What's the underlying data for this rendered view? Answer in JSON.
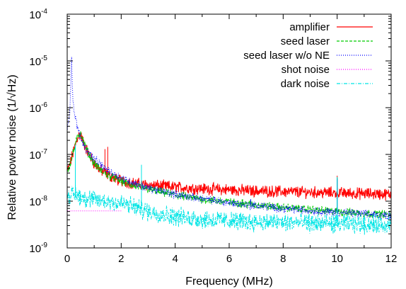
{
  "chart_data": {
    "type": "line",
    "title": "",
    "xlabel": "Frequency (MHz)",
    "ylabel": "Relative power noise (1/√Hz)",
    "x_scale": "linear",
    "y_scale": "log",
    "xlim": [
      0,
      12
    ],
    "ylim": [
      1e-09,
      0.0001
    ],
    "x_ticks": [
      "0",
      "2",
      "4",
      "6",
      "8",
      "10",
      "12"
    ],
    "x_tick_values": [
      0,
      2,
      4,
      6,
      8,
      10,
      12
    ],
    "y_ticks": [
      {
        "base": "10",
        "exp": "-9",
        "value": 1e-09
      },
      {
        "base": "10",
        "exp": "-8",
        "value": 1e-08
      },
      {
        "base": "10",
        "exp": "-7",
        "value": 1e-07
      },
      {
        "base": "10",
        "exp": "-6",
        "value": 1e-06
      },
      {
        "base": "10",
        "exp": "-5",
        "value": 1e-05
      },
      {
        "base": "10",
        "exp": "-4",
        "value": 0.0001
      }
    ],
    "grid": false,
    "legend_position": "top-right",
    "series": [
      {
        "name": "amplifier",
        "color": "#ff0000",
        "dash": "solid",
        "points": [
          [
            0.02,
            4.5e-08
          ],
          [
            0.1,
            6e-08
          ],
          [
            0.2,
            1e-07
          ],
          [
            0.3,
            1.6e-07
          ],
          [
            0.4,
            2.5e-07
          ],
          [
            0.5,
            2.6e-07
          ],
          [
            0.6,
            1.8e-07
          ],
          [
            0.8,
            1e-07
          ],
          [
            1.0,
            6.5e-08
          ],
          [
            1.2,
            4.8e-08
          ],
          [
            1.4,
            4e-08
          ],
          [
            1.6,
            3.4e-08
          ],
          [
            1.8,
            3e-08
          ],
          [
            2.0,
            2.7e-08
          ],
          [
            2.5,
            2.4e-08
          ],
          [
            3,
            2.2e-08
          ],
          [
            4,
            2e-08
          ],
          [
            5,
            1.85e-08
          ],
          [
            6,
            1.75e-08
          ],
          [
            7,
            1.65e-08
          ],
          [
            8,
            1.6e-08
          ],
          [
            9,
            1.55e-08
          ],
          [
            10,
            1.5e-08
          ],
          [
            11,
            1.45e-08
          ],
          [
            12,
            1.4e-08
          ]
        ],
        "spikes": [
          [
            1.4,
            1.3e-07
          ],
          [
            1.5,
            1.45e-07
          ],
          [
            2.75,
            5.5e-08
          ],
          [
            10.0,
            3.5e-08
          ]
        ]
      },
      {
        "name": "seed laser",
        "color": "#00cc00",
        "dash": "dashed",
        "points": [
          [
            0.02,
            4.5e-08
          ],
          [
            0.1,
            6e-08
          ],
          [
            0.2,
            1e-07
          ],
          [
            0.3,
            1.6e-07
          ],
          [
            0.4,
            2.6e-07
          ],
          [
            0.5,
            2.9e-07
          ],
          [
            0.6,
            1.9e-07
          ],
          [
            0.8,
            1e-07
          ],
          [
            1.0,
            6.5e-08
          ],
          [
            1.2,
            4.8e-08
          ],
          [
            1.5,
            3.6e-08
          ],
          [
            2.0,
            2.7e-08
          ],
          [
            2.5,
            2.1e-08
          ],
          [
            3,
            1.8e-08
          ],
          [
            4,
            1.35e-08
          ],
          [
            5,
            1.1e-08
          ],
          [
            6,
            9.5e-09
          ],
          [
            7,
            8.3e-09
          ],
          [
            8,
            7.3e-09
          ],
          [
            9,
            6.6e-09
          ],
          [
            10,
            6e-09
          ],
          [
            11,
            5.5e-09
          ],
          [
            12,
            5.2e-09
          ]
        ],
        "spikes": [
          [
            2.75,
            5.5e-08
          ],
          [
            6.5,
            1.1e-08
          ],
          [
            10.0,
            3.2e-08
          ]
        ]
      },
      {
        "name": "seed laser w/o NE",
        "color": "#0000ff",
        "dash": "dotted",
        "points": [
          [
            0.01,
            3.5e-07
          ],
          [
            0.05,
            4.5e-07
          ],
          [
            0.1,
            9e-07
          ],
          [
            0.14,
            5e-06
          ],
          [
            0.16,
            1.5e-05
          ],
          [
            0.18,
            5e-06
          ],
          [
            0.22,
            1.2e-06
          ],
          [
            0.3,
            6e-07
          ],
          [
            0.4,
            3.5e-07
          ],
          [
            0.5,
            2.2e-07
          ],
          [
            0.7,
            1.3e-07
          ],
          [
            1.0,
            8e-08
          ],
          [
            1.5,
            4.5e-08
          ],
          [
            2.0,
            3.2e-08
          ],
          [
            2.5,
            2.4e-08
          ],
          [
            3,
            1.9e-08
          ],
          [
            4,
            1.4e-08
          ],
          [
            5,
            1.12e-08
          ],
          [
            6,
            9.3e-09
          ],
          [
            7,
            8e-09
          ],
          [
            8,
            7e-09
          ],
          [
            9,
            6.3e-09
          ],
          [
            10,
            5.8e-09
          ],
          [
            11,
            5.3e-09
          ],
          [
            12,
            4.9e-09
          ]
        ],
        "spikes": [
          [
            2.75,
            4e-08
          ],
          [
            6.8,
            1.1e-08
          ],
          [
            10.0,
            3e-08
          ]
        ]
      },
      {
        "name": "shot noise",
        "color": "#ff00ff",
        "dash": "dotted",
        "points": [
          [
            0.01,
            6.2e-09
          ],
          [
            2.0,
            6.2e-09
          ]
        ]
      },
      {
        "name": "dark noise",
        "color": "#00e5e5",
        "dash": "dashdot",
        "points": [
          [
            0.02,
            1.3e-08
          ],
          [
            0.3,
            1.4e-08
          ],
          [
            0.6,
            1.2e-08
          ],
          [
            1.0,
            1.05e-08
          ],
          [
            1.5,
            1e-08
          ],
          [
            2.0,
            9e-09
          ],
          [
            2.5,
            7.5e-09
          ],
          [
            3,
            6e-09
          ],
          [
            4,
            4.7e-09
          ],
          [
            5,
            4.1e-09
          ],
          [
            6,
            3.8e-09
          ],
          [
            7,
            3.6e-09
          ],
          [
            8,
            3.5e-09
          ],
          [
            9,
            3.4e-09
          ],
          [
            10,
            3.3e-09
          ],
          [
            11,
            3.2e-09
          ],
          [
            12,
            3.2e-09
          ]
        ],
        "spikes": [
          [
            0.3,
            1.6e-07
          ],
          [
            2.75,
            6e-08
          ],
          [
            10.0,
            3.3e-08
          ]
        ]
      }
    ]
  }
}
